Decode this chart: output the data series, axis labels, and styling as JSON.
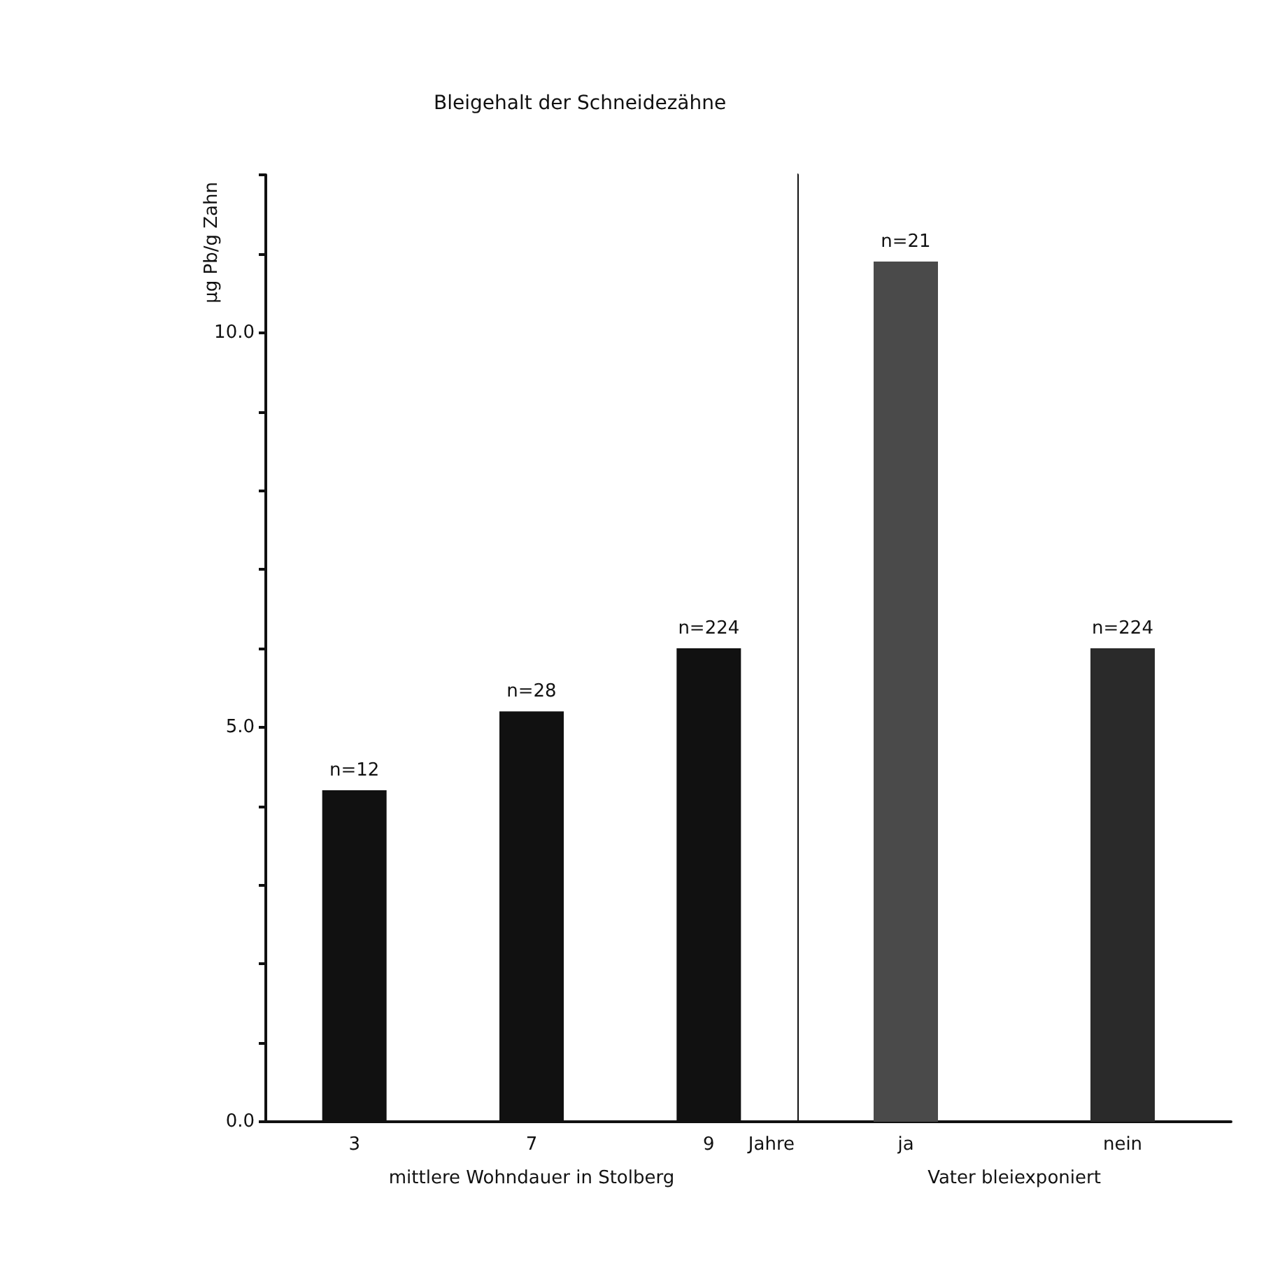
{
  "chart_data": [
    {
      "type": "bar",
      "title": "Bleigehalt der Schneidezähne",
      "ylabel": "µg Pb/g Zahn",
      "xlabel": "mittlere Wohndauer in Stolberg",
      "categories": [
        "3",
        "7",
        "9"
      ],
      "values": [
        4.2,
        5.2,
        6.0
      ],
      "color": "#111111",
      "annotations": [
        "Jahre",
        {
          "text": "n=12",
          "x": "3",
          "y": 4.2
        },
        {
          "text": "n=28",
          "x": "7",
          "y": 5.2
        },
        {
          "text": "n=224",
          "x": "9",
          "y": 6.0
        }
      ],
      "ylim": [
        0,
        12
      ],
      "yticks": [
        {
          "value": 0,
          "label": "0.0"
        },
        {
          "value": 1,
          "label": null
        },
        {
          "value": 2,
          "label": null
        },
        {
          "value": 3,
          "label": null
        },
        {
          "value": 4,
          "label": null
        },
        {
          "value": 5,
          "label": "5.0"
        },
        {
          "value": 6,
          "label": null
        },
        {
          "value": 7,
          "label": null
        },
        {
          "value": 8,
          "label": null
        },
        {
          "value": 9,
          "label": null
        },
        {
          "value": 10,
          "label": "10.0"
        },
        {
          "value": 11,
          "label": null
        },
        {
          "value": 12,
          "label": null
        }
      ],
      "grid": false
    },
    {
      "type": "bar",
      "xlabel": "Vater bleiexponiert",
      "categories": [
        "ja",
        "nein"
      ],
      "values": [
        10.9,
        6.0
      ],
      "colors": [
        "#4a4a4a",
        "#2a2a2a"
      ],
      "annotations": [
        {
          "text": "n=21",
          "x": "ja",
          "y": 10.9
        },
        {
          "text": "n=224",
          "x": "nein",
          "y": 6.0
        }
      ],
      "ylim": [
        0,
        12
      ],
      "yticks": [
        {
          "value": 5,
          "label": null
        },
        {
          "value": 10,
          "label": null
        }
      ],
      "tick_labels": "x",
      "grid": false
    }
  ]
}
